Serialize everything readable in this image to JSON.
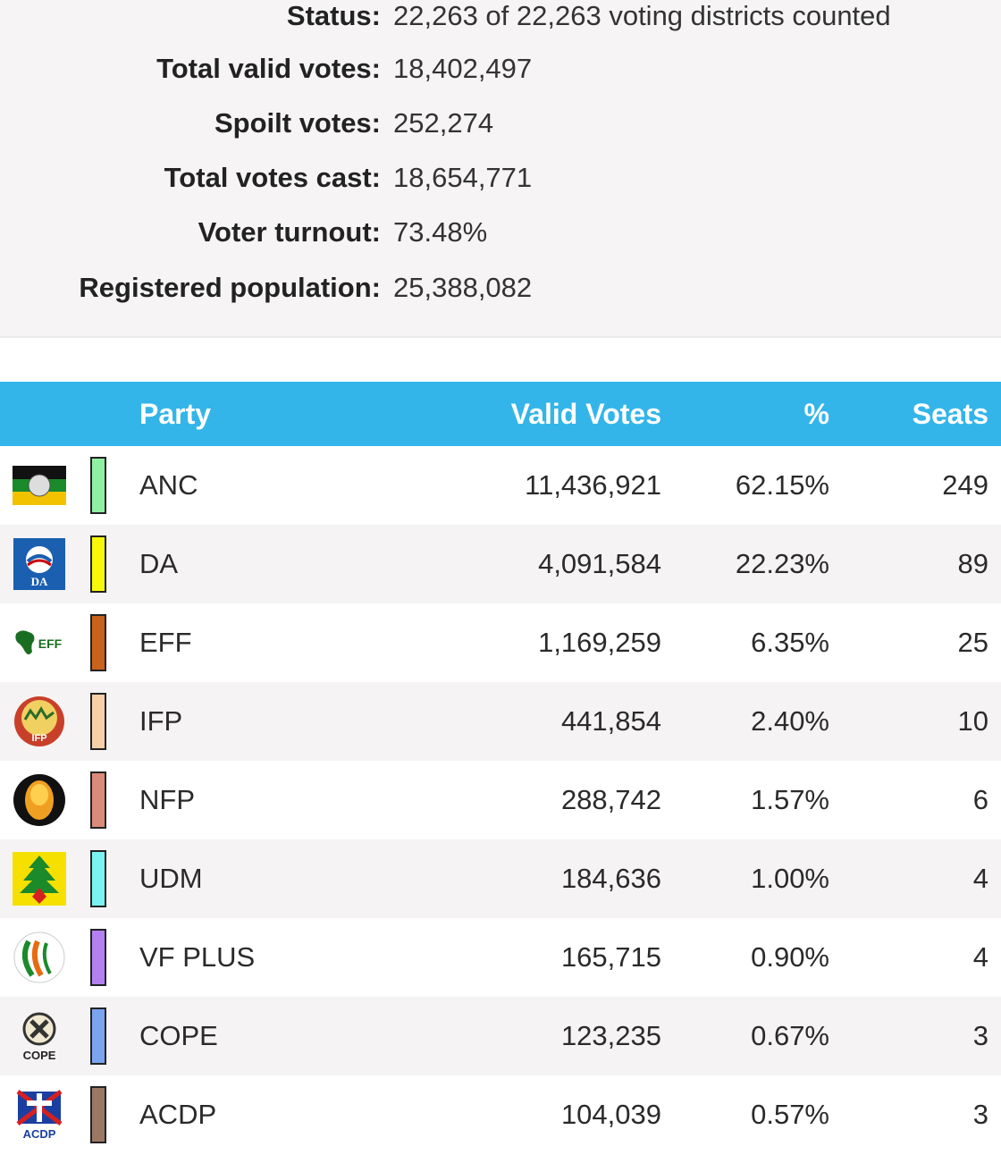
{
  "summary": {
    "status_label": "Status:",
    "status_value": "22,263 of 22,263 voting districts counted",
    "valid_label": "Total valid votes:",
    "valid_value": "18,402,497",
    "spoilt_label": "Spoilt votes:",
    "spoilt_value": "252,274",
    "cast_label": "Total votes cast:",
    "cast_value": "18,654,771",
    "turnout_label": "Voter turnout:",
    "turnout_value": "73.48%",
    "registered_label": "Registered population:",
    "registered_value": "25,388,082"
  },
  "table": {
    "headers": {
      "party": "Party",
      "votes": "Valid Votes",
      "pct": "%",
      "seats": "Seats"
    },
    "rows": [
      {
        "party": "ANC",
        "votes": "11,436,921",
        "pct": "62.15%",
        "seats": "249",
        "color": "#8ff0a4",
        "logo": "anc-logo-icon"
      },
      {
        "party": "DA",
        "votes": "4,091,584",
        "pct": "22.23%",
        "seats": "89",
        "color": "#f7f70a",
        "logo": "da-logo-icon"
      },
      {
        "party": "EFF",
        "votes": "1,169,259",
        "pct": "6.35%",
        "seats": "25",
        "color": "#c8621c",
        "logo": "eff-logo-icon"
      },
      {
        "party": "IFP",
        "votes": "441,854",
        "pct": "2.40%",
        "seats": "10",
        "color": "#f8d0a6",
        "logo": "ifp-logo-icon"
      },
      {
        "party": "NFP",
        "votes": "288,742",
        "pct": "1.57%",
        "seats": "6",
        "color": "#d98a7a",
        "logo": "nfp-logo-icon"
      },
      {
        "party": "UDM",
        "votes": "184,636",
        "pct": "1.00%",
        "seats": "4",
        "color": "#7af2f2",
        "logo": "udm-logo-icon"
      },
      {
        "party": "VF PLUS",
        "votes": "165,715",
        "pct": "0.90%",
        "seats": "4",
        "color": "#b480ef",
        "logo": "vf-plus-logo-icon"
      },
      {
        "party": "COPE",
        "votes": "123,235",
        "pct": "0.67%",
        "seats": "3",
        "color": "#7aa4ef",
        "logo": "cope-logo-icon"
      },
      {
        "party": "ACDP",
        "votes": "104,039",
        "pct": "0.57%",
        "seats": "3",
        "color": "#9a7864",
        "logo": "acdp-logo-icon"
      }
    ]
  }
}
